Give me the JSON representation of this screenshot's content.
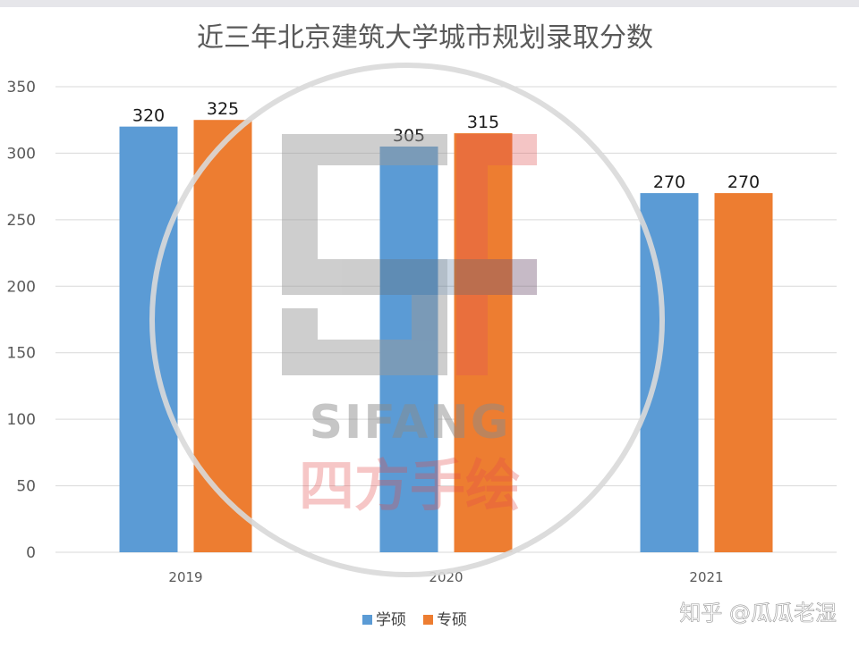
{
  "chart_data": {
    "type": "bar",
    "title": "近三年北京建筑大学城市规划录取分数",
    "categories": [
      "2019",
      "2020",
      "2021"
    ],
    "series": [
      {
        "name": "学硕",
        "values": [
          320,
          305,
          270
        ],
        "color": "#5b9bd5"
      },
      {
        "name": "专硕",
        "values": [
          325,
          315,
          270
        ],
        "color": "#ed7d31"
      }
    ],
    "ylim": [
      0,
      350
    ],
    "yticks": [
      0,
      50,
      100,
      150,
      200,
      250,
      300,
      350
    ],
    "grid": true,
    "legend": "bottom-center",
    "data_labels": true
  },
  "watermark": {
    "logo_letters": "SF",
    "brand": "SIFANG",
    "brand_cn": "四方手绘"
  },
  "credit": "知乎 @瓜瓜老湿"
}
